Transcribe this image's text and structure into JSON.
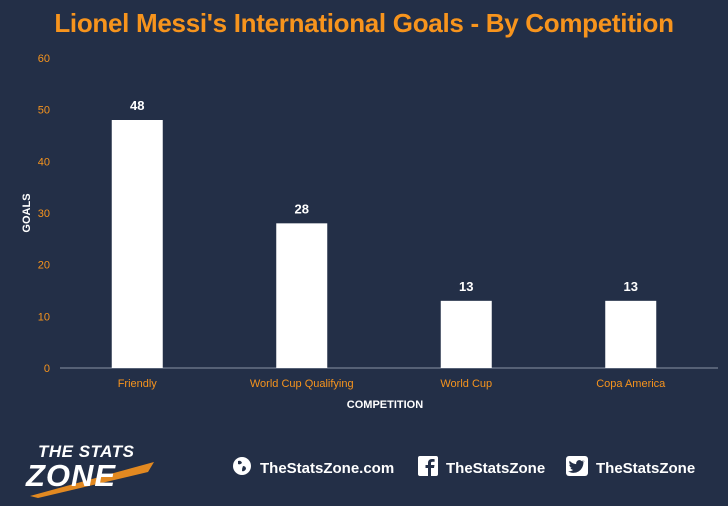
{
  "theme": {
    "background": "#232f47",
    "accent": "#f7941d",
    "bar_color": "#ffffff",
    "text_color": "#ffffff"
  },
  "chart_data": {
    "type": "bar",
    "title": "Lionel Messi's International Goals - By Competition",
    "xlabel": "COMPETITION",
    "ylabel": "GOALS",
    "categories": [
      "Friendly",
      "World Cup Qualifying",
      "World Cup",
      "Copa America"
    ],
    "values": [
      48,
      28,
      13,
      13
    ],
    "data_labels": [
      "48",
      "28",
      "13",
      "13"
    ],
    "ylim": [
      0,
      60
    ],
    "yticks": [
      0,
      10,
      20,
      30,
      40,
      50,
      60
    ],
    "grid": false,
    "legend": "none"
  },
  "footer": {
    "logo_line1": "THE STATS",
    "logo_line2": "ZONE",
    "website": "TheStatsZone.com",
    "facebook": "TheStatsZone",
    "twitter": "TheStatsZone",
    "website_icon": "globe-icon",
    "facebook_icon": "facebook-icon",
    "twitter_icon": "twitter-icon"
  }
}
